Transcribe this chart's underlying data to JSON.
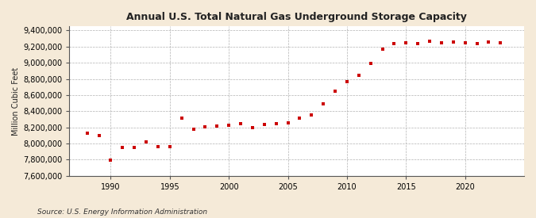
{
  "title": "Annual U.S. Total Natural Gas Underground Storage Capacity",
  "ylabel": "Million Cubic Feet",
  "source": "Source: U.S. Energy Information Administration",
  "background_color": "#f5ead8",
  "plot_background_color": "#ffffff",
  "marker_color": "#cc0000",
  "marker": "s",
  "marker_size": 3.5,
  "xlim": [
    1986.5,
    2025
  ],
  "ylim": [
    7600000,
    9450000
  ],
  "xticks": [
    1990,
    1995,
    2000,
    2005,
    2010,
    2015,
    2020
  ],
  "yticks": [
    7600000,
    7800000,
    8000000,
    8200000,
    8400000,
    8600000,
    8800000,
    9000000,
    9200000,
    9400000
  ],
  "data": {
    "years": [
      1988,
      1989,
      1990,
      1991,
      1992,
      1993,
      1994,
      1995,
      1996,
      1997,
      1998,
      1999,
      2000,
      2001,
      2002,
      2003,
      2004,
      2005,
      2006,
      2007,
      2008,
      2009,
      2010,
      2011,
      2012,
      2013,
      2014,
      2015,
      2016,
      2017,
      2018,
      2019,
      2020,
      2021,
      2022,
      2023
    ],
    "values": [
      8130000,
      8100000,
      7790000,
      7950000,
      7950000,
      8020000,
      7960000,
      7960000,
      8310000,
      8180000,
      8210000,
      8220000,
      8230000,
      8250000,
      8200000,
      8240000,
      8250000,
      8260000,
      8310000,
      8350000,
      8490000,
      8650000,
      8770000,
      8840000,
      8990000,
      9170000,
      9240000,
      9250000,
      9240000,
      9270000,
      9250000,
      9260000,
      9250000,
      9240000,
      9260000,
      9250000
    ]
  }
}
